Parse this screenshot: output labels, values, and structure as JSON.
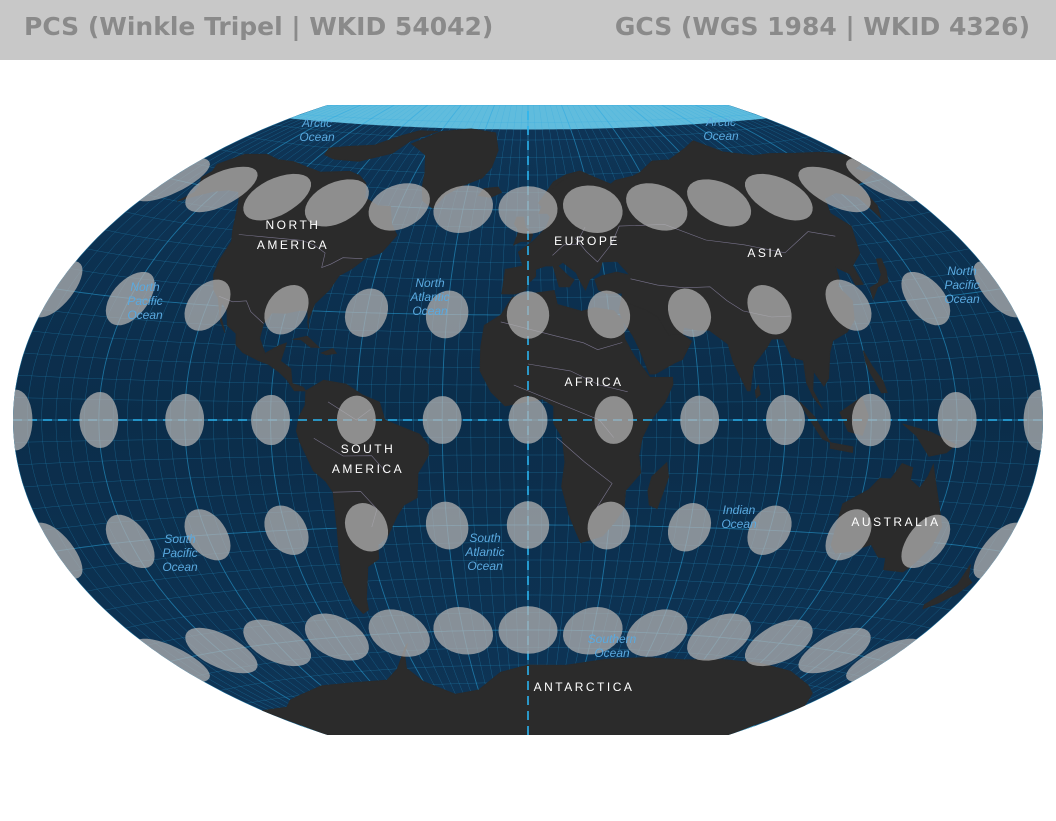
{
  "header": {
    "left_title": "PCS (Winkle Tripel | WKID 54042)",
    "right_title": "GCS (WGS 1984 | WKID 4326)"
  },
  "map": {
    "projection": "Winkel Tripel",
    "colors": {
      "ocean": "#0b2d4a",
      "ocean_edge": "#0a2236",
      "graticule": "#2aa8e0",
      "land": "#2b2b2b",
      "border": "#8d87a6",
      "ellipse": "#b0b0b0",
      "continent_label": "#ffffff",
      "ocean_label": "#5aa9df"
    },
    "continents": {
      "north_america": [
        "NORTH",
        "AMERICA"
      ],
      "south_america": [
        "SOUTH",
        "AMERICA"
      ],
      "europe": [
        "EUROPE"
      ],
      "africa": [
        "AFRICA"
      ],
      "asia": [
        "ASIA"
      ],
      "australia": [
        "AUSTRALIA"
      ],
      "antarctica": [
        "ANTARCTICA"
      ]
    },
    "oceans": {
      "arctic_w": [
        "Arctic",
        "Ocean"
      ],
      "arctic_e": [
        "Arctic",
        "Ocean"
      ],
      "north_pacific_w": [
        "North",
        "Pacific",
        "Ocean"
      ],
      "north_atlantic": [
        "North",
        "Atlantic",
        "Ocean"
      ],
      "north_pacific_e": [
        "North",
        "Pacific",
        "Ocean"
      ],
      "south_pacific": [
        "South",
        "Pacific",
        "Ocean"
      ],
      "south_atlantic": [
        "South",
        "Atlantic",
        "Ocean"
      ],
      "indian": [
        "Indian",
        "Ocean"
      ],
      "southern": [
        "Southern",
        "Ocean"
      ]
    },
    "tissot_indicatrix": {
      "latitudes_deg": [
        60,
        30,
        0,
        -30,
        -60
      ],
      "longitudes_deg": [
        -180,
        -150,
        -120,
        -90,
        -60,
        -30,
        0,
        30,
        60,
        90,
        120,
        150,
        180
      ]
    }
  }
}
